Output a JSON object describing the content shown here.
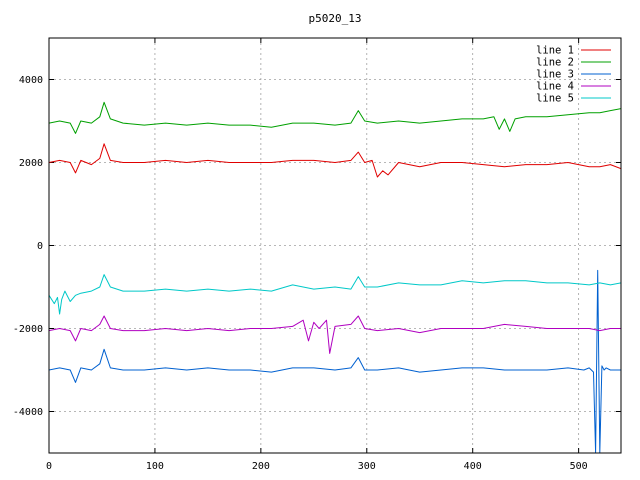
{
  "chart_data": {
    "type": "line",
    "title": "p5020_13",
    "xlabel": "",
    "ylabel": "",
    "xlim": [
      0,
      540
    ],
    "ylim": [
      -5000,
      5000
    ],
    "grid": true,
    "legend_position": "top-right",
    "x_ticks": [
      0,
      100,
      200,
      300,
      400,
      500
    ],
    "y_ticks": [
      -4000,
      -2000,
      0,
      2000,
      4000
    ],
    "series": [
      {
        "name": "line 1",
        "color": "#e00000",
        "x": [
          0,
          10,
          20,
          25,
          30,
          40,
          48,
          52,
          58,
          70,
          90,
          110,
          130,
          150,
          170,
          190,
          210,
          230,
          250,
          270,
          285,
          292,
          298,
          305,
          310,
          315,
          320,
          330,
          350,
          370,
          390,
          410,
          430,
          450,
          470,
          490,
          510,
          520,
          530,
          540
        ],
        "y": [
          2000,
          2050,
          2000,
          1750,
          2050,
          1950,
          2100,
          2450,
          2050,
          2000,
          2000,
          2050,
          2000,
          2050,
          2000,
          2000,
          2000,
          2050,
          2050,
          2000,
          2050,
          2250,
          2000,
          2050,
          1650,
          1800,
          1700,
          2000,
          1900,
          2000,
          2000,
          1950,
          1900,
          1950,
          1950,
          2000,
          1900,
          1900,
          1950,
          1850
        ]
      },
      {
        "name": "line 2",
        "color": "#00a000",
        "x": [
          0,
          10,
          20,
          25,
          30,
          40,
          48,
          52,
          58,
          70,
          90,
          110,
          130,
          150,
          170,
          190,
          210,
          230,
          250,
          270,
          285,
          292,
          298,
          310,
          330,
          350,
          370,
          390,
          410,
          420,
          425,
          430,
          435,
          440,
          450,
          470,
          490,
          510,
          520,
          530,
          540
        ],
        "y": [
          2950,
          3000,
          2950,
          2700,
          3000,
          2950,
          3100,
          3450,
          3050,
          2950,
          2900,
          2950,
          2900,
          2950,
          2900,
          2900,
          2850,
          2950,
          2950,
          2900,
          2950,
          3250,
          3000,
          2950,
          3000,
          2950,
          3000,
          3050,
          3050,
          3100,
          2800,
          3050,
          2750,
          3050,
          3100,
          3100,
          3150,
          3200,
          3200,
          3250,
          3300
        ]
      },
      {
        "name": "line 3",
        "color": "#0060d0",
        "x": [
          0,
          10,
          20,
          25,
          30,
          40,
          48,
          52,
          58,
          70,
          90,
          110,
          130,
          150,
          170,
          190,
          210,
          230,
          250,
          270,
          285,
          292,
          298,
          310,
          330,
          350,
          370,
          390,
          410,
          430,
          450,
          470,
          490,
          505,
          510,
          514,
          516,
          518,
          520,
          522,
          524,
          526,
          530,
          540
        ],
        "y": [
          -3000,
          -2950,
          -3000,
          -3300,
          -2950,
          -3000,
          -2850,
          -2500,
          -2950,
          -3000,
          -3000,
          -2950,
          -3000,
          -2950,
          -3000,
          -3000,
          -3050,
          -2950,
          -2950,
          -3000,
          -2950,
          -2700,
          -3000,
          -3000,
          -2950,
          -3050,
          -3000,
          -2950,
          -2950,
          -3000,
          -3000,
          -3000,
          -2950,
          -3000,
          -2950,
          -3050,
          -5000,
          -600,
          -5000,
          -2900,
          -3000,
          -2950,
          -3000,
          -3000
        ]
      },
      {
        "name": "line 4",
        "color": "#b000c0",
        "x": [
          0,
          10,
          20,
          25,
          30,
          40,
          48,
          52,
          58,
          70,
          90,
          110,
          130,
          150,
          170,
          190,
          210,
          230,
          240,
          245,
          250,
          255,
          262,
          265,
          270,
          285,
          292,
          298,
          310,
          330,
          350,
          370,
          390,
          410,
          430,
          450,
          470,
          490,
          510,
          520,
          530,
          540
        ],
        "y": [
          -2050,
          -2000,
          -2050,
          -2300,
          -2000,
          -2050,
          -1900,
          -1700,
          -2000,
          -2050,
          -2050,
          -2000,
          -2050,
          -2000,
          -2050,
          -2000,
          -2000,
          -1950,
          -1800,
          -2300,
          -1850,
          -2000,
          -1800,
          -2600,
          -1950,
          -1900,
          -1700,
          -2000,
          -2050,
          -2000,
          -2100,
          -2000,
          -2000,
          -2000,
          -1900,
          -1950,
          -2000,
          -2000,
          -2000,
          -2050,
          -2000,
          -2000
        ]
      },
      {
        "name": "line 5",
        "color": "#00c8c8",
        "x": [
          0,
          5,
          8,
          10,
          12,
          15,
          20,
          25,
          30,
          40,
          48,
          52,
          58,
          70,
          90,
          110,
          130,
          150,
          170,
          190,
          210,
          230,
          250,
          270,
          285,
          292,
          298,
          310,
          330,
          350,
          370,
          390,
          410,
          430,
          450,
          470,
          490,
          510,
          520,
          530,
          540
        ],
        "y": [
          -1200,
          -1400,
          -1250,
          -1650,
          -1300,
          -1100,
          -1350,
          -1200,
          -1150,
          -1100,
          -1000,
          -700,
          -1000,
          -1100,
          -1100,
          -1050,
          -1100,
          -1050,
          -1100,
          -1050,
          -1100,
          -950,
          -1050,
          -1000,
          -1050,
          -750,
          -1000,
          -1000,
          -900,
          -950,
          -950,
          -850,
          -900,
          -850,
          -850,
          -900,
          -900,
          -950,
          -900,
          -950,
          -900
        ]
      }
    ]
  }
}
